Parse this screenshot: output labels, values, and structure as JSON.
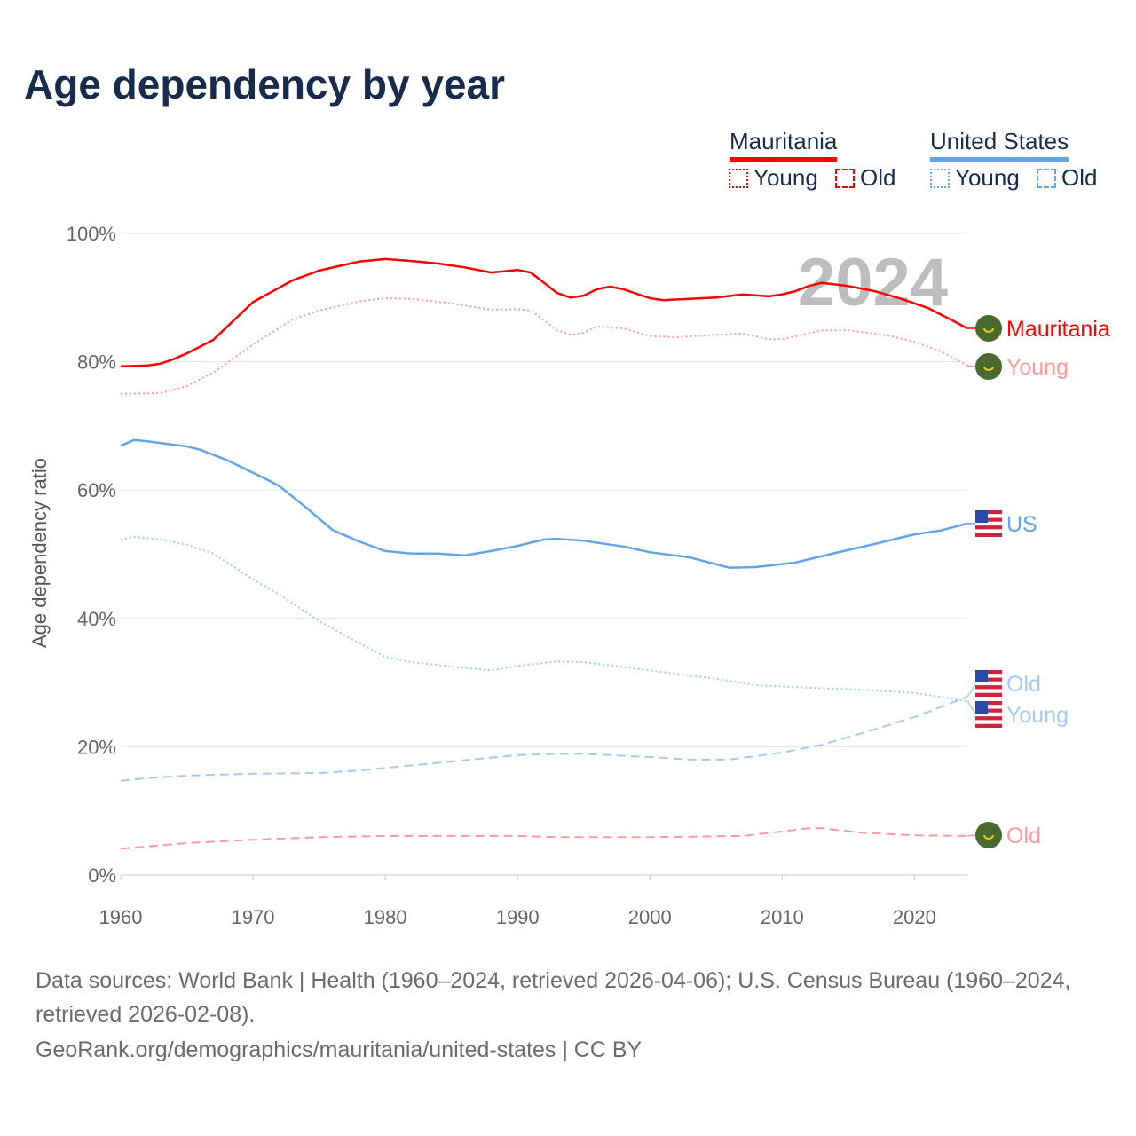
{
  "title": "Age dependency by year",
  "legend": {
    "groups": [
      {
        "name": "Mauritania",
        "color": "#ff0000",
        "items": [
          "Young",
          "Old"
        ]
      },
      {
        "name": "United States",
        "color": "#62a5e8",
        "items": [
          "Young",
          "Old"
        ]
      }
    ]
  },
  "chart_data": {
    "type": "line",
    "ylabel": "Age dependency ratio",
    "xlabel": "",
    "xlim": [
      1960,
      2024
    ],
    "ylim": [
      0,
      100
    ],
    "xticks": [
      "1960",
      "1970",
      "1980",
      "1990",
      "2000",
      "2010",
      "2020"
    ],
    "yticks": [
      "0%",
      "20%",
      "40%",
      "60%",
      "80%",
      "100%"
    ],
    "grid": true,
    "annotation": "2024",
    "series": [
      {
        "name": "Mauritania",
        "end_label": "Mauritania",
        "color": "#ff0000",
        "style": "solid",
        "flag": "mauritania",
        "points": [
          [
            1960,
            79.3
          ],
          [
            1962,
            79.4
          ],
          [
            1963,
            79.7
          ],
          [
            1964,
            80.4
          ],
          [
            1965,
            81.3
          ],
          [
            1967,
            83.4
          ],
          [
            1970,
            89.3
          ],
          [
            1973,
            92.7
          ],
          [
            1975,
            94.2
          ],
          [
            1978,
            95.6
          ],
          [
            1980,
            96.0
          ],
          [
            1982,
            95.7
          ],
          [
            1984,
            95.3
          ],
          [
            1986,
            94.7
          ],
          [
            1988,
            93.9
          ],
          [
            1990,
            94.3
          ],
          [
            1991,
            93.9
          ],
          [
            1993,
            90.7
          ],
          [
            1994,
            90.0
          ],
          [
            1995,
            90.3
          ],
          [
            1996,
            91.3
          ],
          [
            1997,
            91.7
          ],
          [
            1998,
            91.3
          ],
          [
            2000,
            89.9
          ],
          [
            2001,
            89.6
          ],
          [
            2005,
            90.0
          ],
          [
            2007,
            90.5
          ],
          [
            2009,
            90.2
          ],
          [
            2010,
            90.5
          ],
          [
            2011,
            91.0
          ],
          [
            2012,
            91.8
          ],
          [
            2013,
            92.3
          ],
          [
            2015,
            91.8
          ],
          [
            2017,
            91.0
          ],
          [
            2019,
            89.8
          ],
          [
            2021,
            88.4
          ],
          [
            2023,
            86.3
          ],
          [
            2024,
            85.2
          ]
        ]
      },
      {
        "name": "Mauritania Young",
        "end_label": "Young",
        "color": "#ff9a9a",
        "style": "dotted",
        "flag": "mauritania",
        "points": [
          [
            1960,
            75.0
          ],
          [
            1963,
            75.1
          ],
          [
            1965,
            76.2
          ],
          [
            1967,
            78.3
          ],
          [
            1970,
            82.7
          ],
          [
            1973,
            86.6
          ],
          [
            1975,
            88.0
          ],
          [
            1978,
            89.4
          ],
          [
            1980,
            89.9
          ],
          [
            1982,
            89.8
          ],
          [
            1985,
            89.1
          ],
          [
            1988,
            88.1
          ],
          [
            1990,
            88.2
          ],
          [
            1991,
            88.0
          ],
          [
            1993,
            84.9
          ],
          [
            1994,
            84.2
          ],
          [
            1995,
            84.5
          ],
          [
            1996,
            85.5
          ],
          [
            1998,
            85.2
          ],
          [
            2000,
            84.0
          ],
          [
            2002,
            83.8
          ],
          [
            2005,
            84.2
          ],
          [
            2007,
            84.4
          ],
          [
            2009,
            83.5
          ],
          [
            2010,
            83.5
          ],
          [
            2013,
            84.9
          ],
          [
            2015,
            84.9
          ],
          [
            2018,
            84.1
          ],
          [
            2020,
            83.1
          ],
          [
            2022,
            81.6
          ],
          [
            2024,
            79.4
          ]
        ]
      },
      {
        "name": "Mauritania Old",
        "end_label": "Old",
        "color": "#ff9a9a",
        "style": "dashed",
        "flag": "mauritania",
        "points": [
          [
            1960,
            4.1
          ],
          [
            1965,
            5.0
          ],
          [
            1970,
            5.5
          ],
          [
            1975,
            5.9
          ],
          [
            1980,
            6.1
          ],
          [
            1990,
            6.1
          ],
          [
            1993,
            5.9
          ],
          [
            2000,
            5.9
          ],
          [
            2007,
            6.1
          ],
          [
            2010,
            6.8
          ],
          [
            2012,
            7.3
          ],
          [
            2013,
            7.3
          ],
          [
            2016,
            6.6
          ],
          [
            2020,
            6.2
          ],
          [
            2024,
            6.1
          ]
        ]
      },
      {
        "name": "United States",
        "end_label": "US",
        "color": "#62a5e8",
        "style": "solid",
        "flag": "us",
        "points": [
          [
            1960,
            66.9
          ],
          [
            1961,
            67.8
          ],
          [
            1962,
            67.6
          ],
          [
            1965,
            66.8
          ],
          [
            1966,
            66.3
          ],
          [
            1968,
            64.7
          ],
          [
            1970,
            62.7
          ],
          [
            1971,
            61.7
          ],
          [
            1972,
            60.6
          ],
          [
            1974,
            57.3
          ],
          [
            1976,
            53.8
          ],
          [
            1978,
            52.0
          ],
          [
            1980,
            50.5
          ],
          [
            1982,
            50.1
          ],
          [
            1984,
            50.1
          ],
          [
            1986,
            49.8
          ],
          [
            1988,
            50.5
          ],
          [
            1990,
            51.3
          ],
          [
            1992,
            52.3
          ],
          [
            1993,
            52.4
          ],
          [
            1995,
            52.1
          ],
          [
            1998,
            51.2
          ],
          [
            2000,
            50.3
          ],
          [
            2003,
            49.5
          ],
          [
            2006,
            47.9
          ],
          [
            2008,
            48.0
          ],
          [
            2011,
            48.7
          ],
          [
            2014,
            50.2
          ],
          [
            2017,
            51.6
          ],
          [
            2020,
            53.1
          ],
          [
            2022,
            53.7
          ],
          [
            2024,
            54.8
          ]
        ]
      },
      {
        "name": "United States Young",
        "end_label": "Young",
        "color": "#a3cbf1",
        "style": "dotted",
        "flag": "us",
        "points": [
          [
            1960,
            52.3
          ],
          [
            1961,
            52.7
          ],
          [
            1963,
            52.3
          ],
          [
            1965,
            51.5
          ],
          [
            1967,
            50.1
          ],
          [
            1970,
            46.1
          ],
          [
            1972,
            43.7
          ],
          [
            1975,
            39.6
          ],
          [
            1977,
            37.3
          ],
          [
            1980,
            34.0
          ],
          [
            1982,
            33.2
          ],
          [
            1985,
            32.5
          ],
          [
            1988,
            31.9
          ],
          [
            1990,
            32.6
          ],
          [
            1993,
            33.3
          ],
          [
            1995,
            33.2
          ],
          [
            2000,
            31.9
          ],
          [
            2005,
            30.6
          ],
          [
            2008,
            29.6
          ],
          [
            2012,
            29.2
          ],
          [
            2016,
            28.9
          ],
          [
            2020,
            28.4
          ],
          [
            2024,
            27.1
          ]
        ]
      },
      {
        "name": "United States Old",
        "end_label": "Old",
        "color": "#a3cbf1",
        "style": "dashed",
        "flag": "us",
        "points": [
          [
            1960,
            14.7
          ],
          [
            1962,
            15.1
          ],
          [
            1965,
            15.5
          ],
          [
            1970,
            15.8
          ],
          [
            1975,
            15.9
          ],
          [
            1978,
            16.3
          ],
          [
            1980,
            16.7
          ],
          [
            1985,
            17.7
          ],
          [
            1990,
            18.7
          ],
          [
            1993,
            18.9
          ],
          [
            1995,
            18.9
          ],
          [
            2000,
            18.4
          ],
          [
            2003,
            18.0
          ],
          [
            2006,
            18.0
          ],
          [
            2010,
            19.1
          ],
          [
            2013,
            20.3
          ],
          [
            2016,
            22.1
          ],
          [
            2020,
            24.6
          ],
          [
            2024,
            27.8
          ]
        ]
      }
    ]
  },
  "footer": {
    "sources": "Data sources: World Bank | Health (1960–2024, retrieved 2026-04-06); U.S. Census Bureau (1960–2024, retrieved 2026-02-08).",
    "link": "GeoRank.org/demographics/mauritania/united-states | CC BY"
  }
}
